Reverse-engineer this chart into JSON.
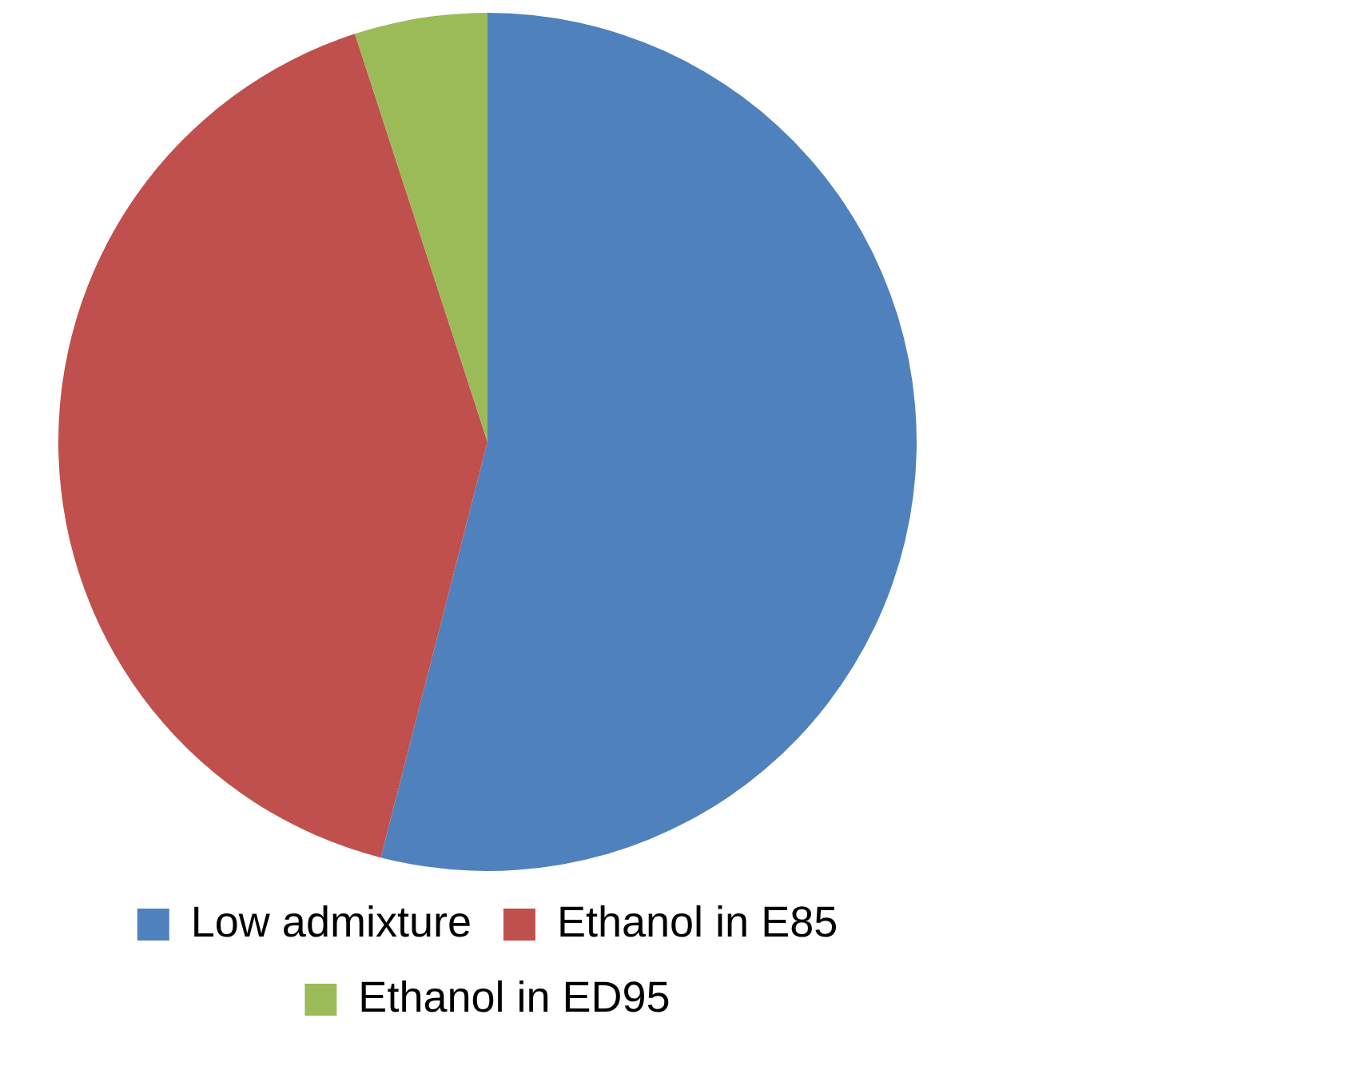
{
  "chart_data": {
    "type": "pie",
    "categories": [
      "Low admixture",
      "Ethanol in E85",
      "Ethanol in ED95"
    ],
    "values": [
      54,
      41,
      5
    ],
    "colors": [
      "#4f81bd",
      "#c0504d",
      "#9bbb59"
    ],
    "legend": "bottom"
  }
}
